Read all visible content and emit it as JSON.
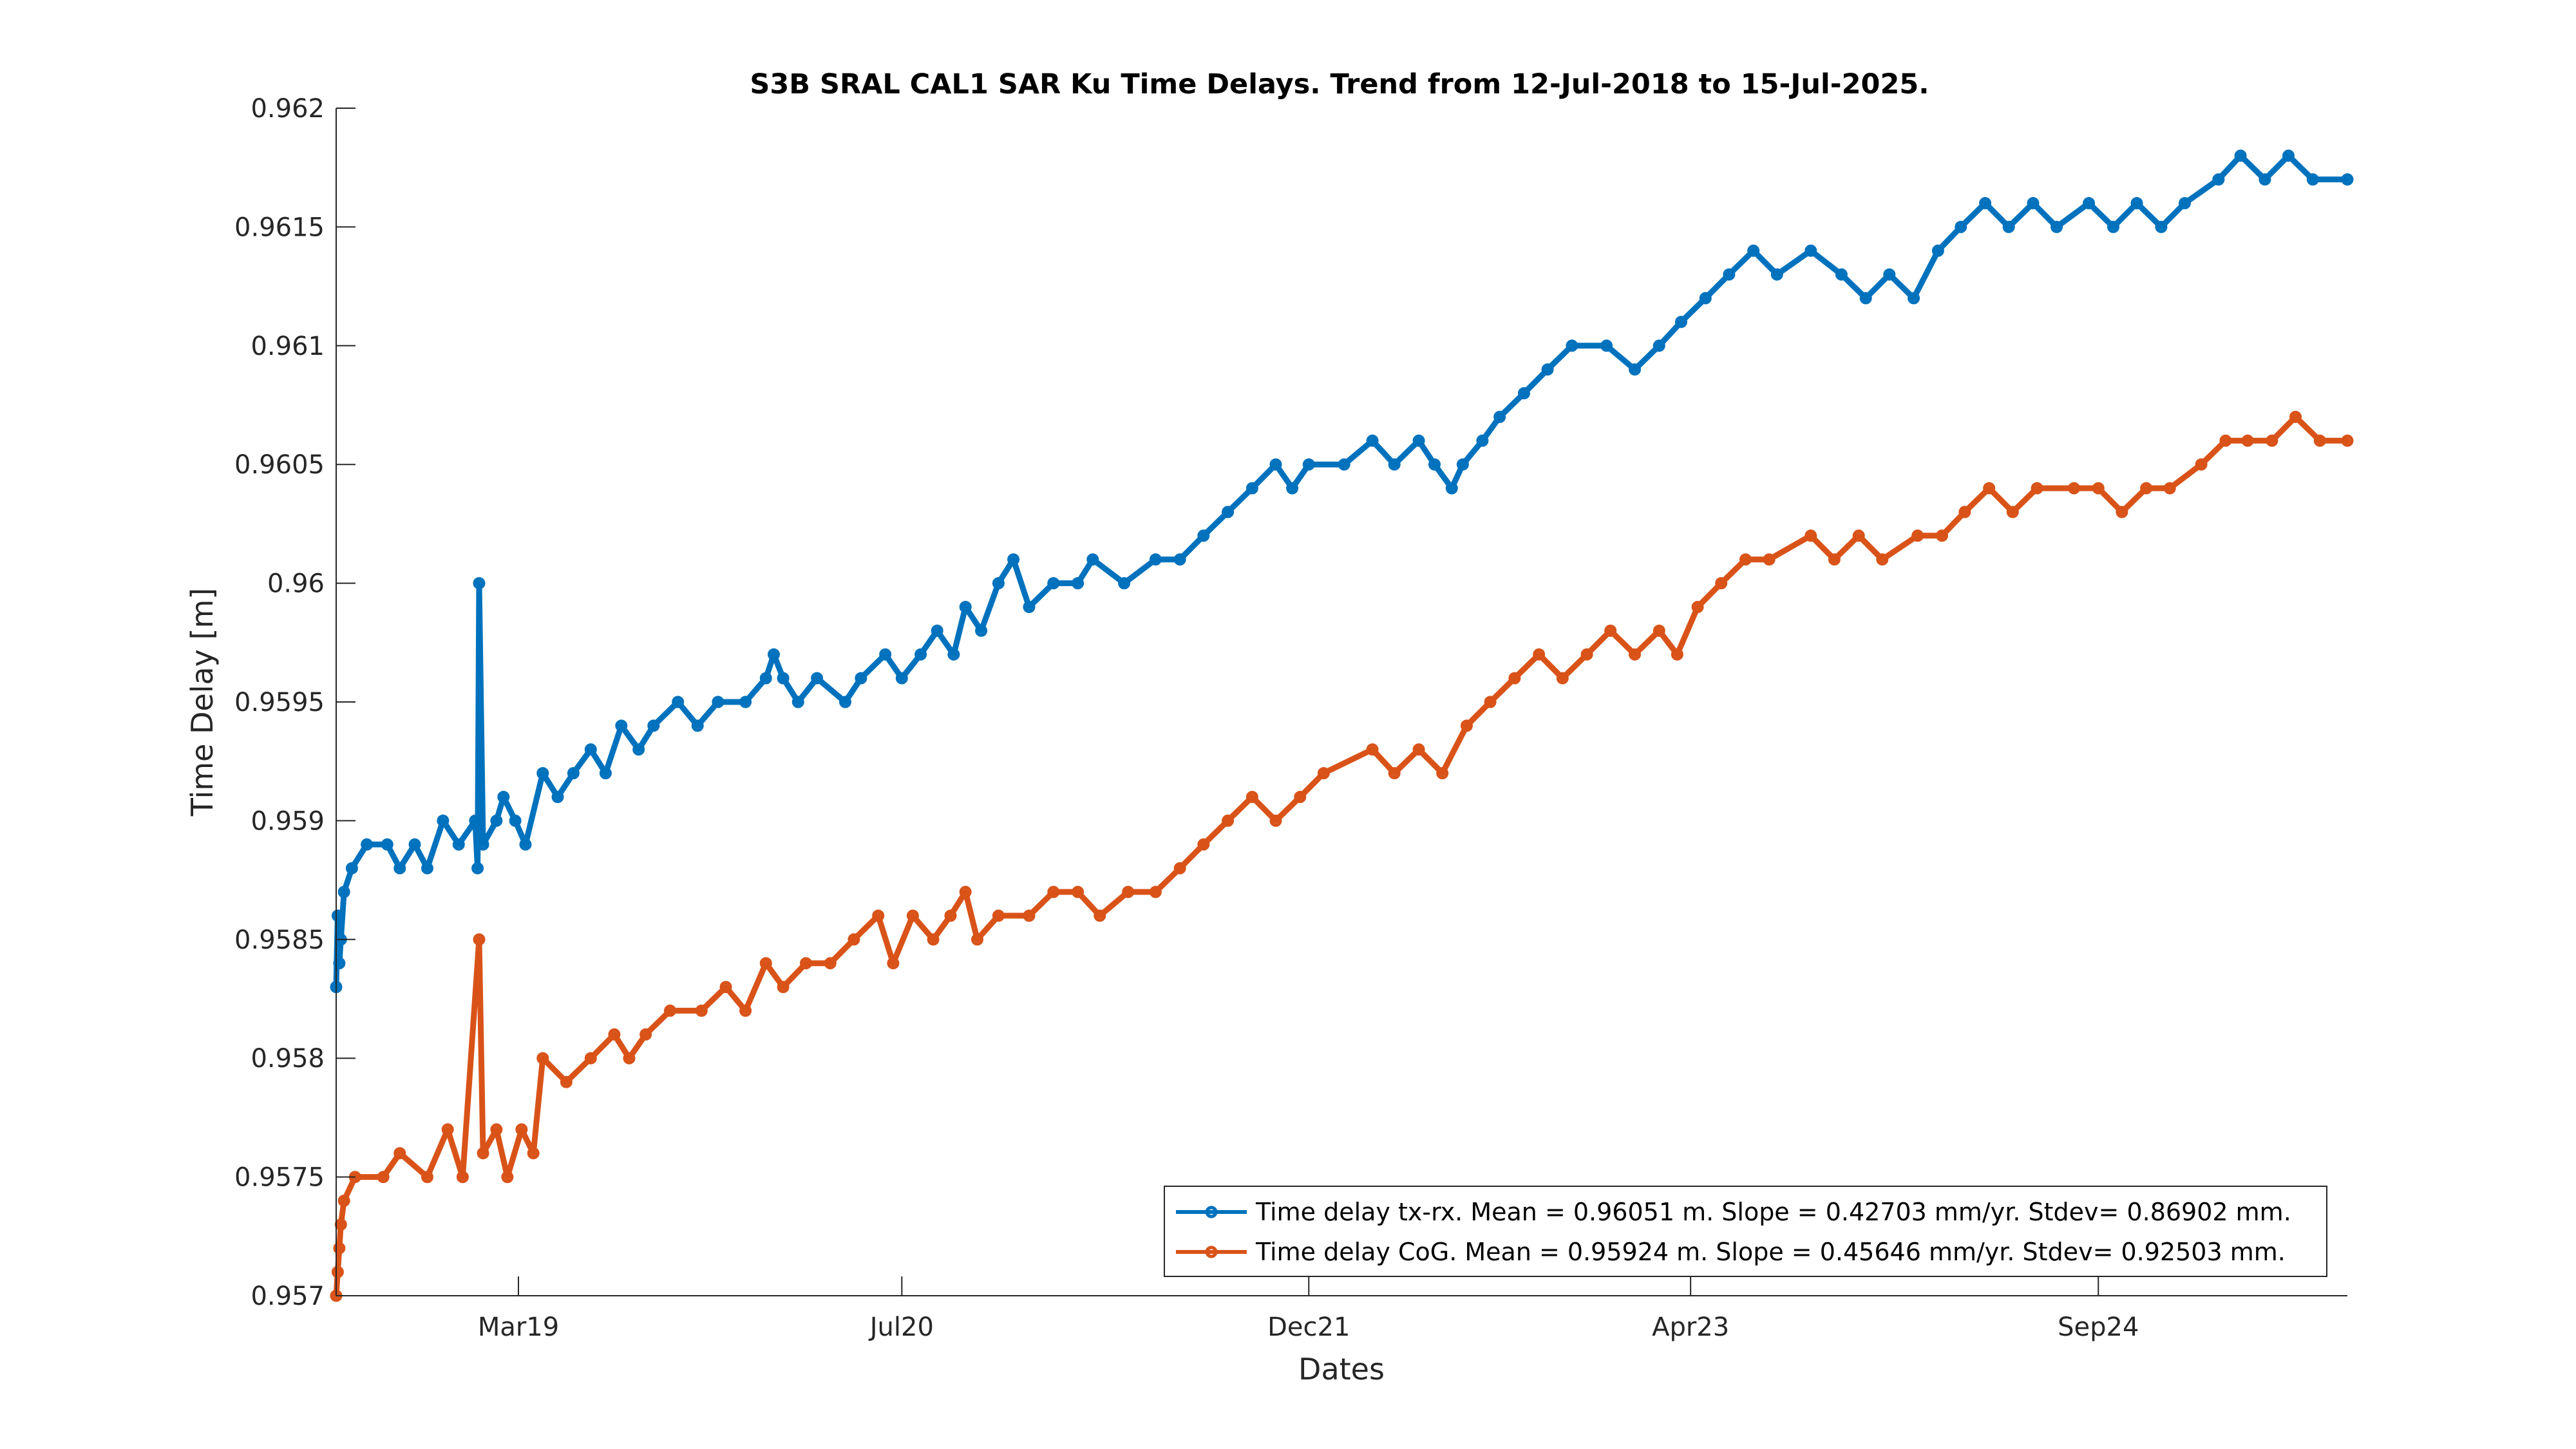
{
  "chart_data": {
    "type": "line",
    "title": "S3B SRAL CAL1 SAR Ku Time Delays. Trend from 12-Jul-2018 to 15-Jul-2025.",
    "xlabel": "Dates",
    "ylabel": "Time Delay [m]",
    "xlim": [
      "2018-07-12",
      "2025-07-15"
    ],
    "ylim": [
      0.957,
      0.962
    ],
    "x_ticks": [
      {
        "date": "2019-03-01",
        "label": "Mar19"
      },
      {
        "date": "2020-07-01",
        "label": "Jul20"
      },
      {
        "date": "2021-12-01",
        "label": "Dec21"
      },
      {
        "date": "2023-04-01",
        "label": "Apr23"
      },
      {
        "date": "2024-09-01",
        "label": "Sep24"
      }
    ],
    "y_ticks": [
      {
        "value": 0.957,
        "label": "0.957"
      },
      {
        "value": 0.9575,
        "label": "0.9575"
      },
      {
        "value": 0.958,
        "label": "0.958"
      },
      {
        "value": 0.9585,
        "label": "0.9585"
      },
      {
        "value": 0.959,
        "label": "0.959"
      },
      {
        "value": 0.9595,
        "label": "0.9595"
      },
      {
        "value": 0.96,
        "label": "0.96"
      },
      {
        "value": 0.9605,
        "label": "0.9605"
      },
      {
        "value": 0.961,
        "label": "0.961"
      },
      {
        "value": 0.9615,
        "label": "0.9615"
      },
      {
        "value": 0.962,
        "label": "0.962"
      }
    ],
    "grid": false,
    "legend_position": "bottom-right",
    "series": [
      {
        "name": "Time delay tx-rx. Mean = 0.96051 m. Slope = 0.42703 mm/yr. Stdev= 0.86902 mm.",
        "color": "#0072BD",
        "marker": "circle",
        "points": [
          [
            "2018-07-12",
            0.9583
          ],
          [
            "2018-07-14",
            0.9586
          ],
          [
            "2018-07-16",
            0.9584
          ],
          [
            "2018-07-18",
            0.9585
          ],
          [
            "2018-07-22",
            0.9587
          ],
          [
            "2018-08-01",
            0.9588
          ],
          [
            "2018-08-20",
            0.9589
          ],
          [
            "2018-09-15",
            0.9589
          ],
          [
            "2018-10-01",
            0.9588
          ],
          [
            "2018-10-20",
            0.9589
          ],
          [
            "2018-11-05",
            0.9588
          ],
          [
            "2018-11-25",
            0.959
          ],
          [
            "2018-12-15",
            0.9589
          ],
          [
            "2019-01-05",
            0.959
          ],
          [
            "2019-01-08",
            0.9588
          ],
          [
            "2019-01-10",
            0.96
          ],
          [
            "2019-01-15",
            0.9589
          ],
          [
            "2019-02-01",
            0.959
          ],
          [
            "2019-02-10",
            0.9591
          ],
          [
            "2019-02-25",
            0.959
          ],
          [
            "2019-03-10",
            0.9589
          ],
          [
            "2019-04-01",
            0.9592
          ],
          [
            "2019-04-20",
            0.9591
          ],
          [
            "2019-05-10",
            0.9592
          ],
          [
            "2019-06-01",
            0.9593
          ],
          [
            "2019-06-20",
            0.9592
          ],
          [
            "2019-07-10",
            0.9594
          ],
          [
            "2019-08-01",
            0.9593
          ],
          [
            "2019-08-20",
            0.9594
          ],
          [
            "2019-09-20",
            0.9595
          ],
          [
            "2019-10-15",
            0.9594
          ],
          [
            "2019-11-10",
            0.9595
          ],
          [
            "2019-12-15",
            0.9595
          ],
          [
            "2020-01-10",
            0.9596
          ],
          [
            "2020-01-20",
            0.9597
          ],
          [
            "2020-02-01",
            0.9596
          ],
          [
            "2020-02-20",
            0.9595
          ],
          [
            "2020-03-15",
            0.9596
          ],
          [
            "2020-04-20",
            0.9595
          ],
          [
            "2020-05-10",
            0.9596
          ],
          [
            "2020-06-10",
            0.9597
          ],
          [
            "2020-07-01",
            0.9596
          ],
          [
            "2020-07-25",
            0.9597
          ],
          [
            "2020-08-15",
            0.9598
          ],
          [
            "2020-09-05",
            0.9597
          ],
          [
            "2020-09-20",
            0.9599
          ],
          [
            "2020-10-10",
            0.9598
          ],
          [
            "2020-11-01",
            0.96
          ],
          [
            "2020-11-20",
            0.9601
          ],
          [
            "2020-12-10",
            0.9599
          ],
          [
            "2021-01-10",
            0.96
          ],
          [
            "2021-02-10",
            0.96
          ],
          [
            "2021-03-01",
            0.9601
          ],
          [
            "2021-04-10",
            0.96
          ],
          [
            "2021-05-20",
            0.9601
          ],
          [
            "2021-06-20",
            0.9601
          ],
          [
            "2021-07-20",
            0.9602
          ],
          [
            "2021-08-20",
            0.9603
          ],
          [
            "2021-09-20",
            0.9604
          ],
          [
            "2021-10-20",
            0.9605
          ],
          [
            "2021-11-10",
            0.9604
          ],
          [
            "2021-12-01",
            0.9605
          ],
          [
            "2022-01-15",
            0.9605
          ],
          [
            "2022-02-20",
            0.9606
          ],
          [
            "2022-03-20",
            0.9605
          ],
          [
            "2022-04-20",
            0.9606
          ],
          [
            "2022-05-10",
            0.9605
          ],
          [
            "2022-06-01",
            0.9604
          ],
          [
            "2022-06-15",
            0.9605
          ],
          [
            "2022-07-10",
            0.9606
          ],
          [
            "2022-08-01",
            0.9607
          ],
          [
            "2022-09-01",
            0.9608
          ],
          [
            "2022-10-01",
            0.9609
          ],
          [
            "2022-11-01",
            0.961
          ],
          [
            "2022-12-15",
            0.961
          ],
          [
            "2023-01-20",
            0.9609
          ],
          [
            "2023-02-20",
            0.961
          ],
          [
            "2023-03-20",
            0.9611
          ],
          [
            "2023-04-20",
            0.9612
          ],
          [
            "2023-05-20",
            0.9613
          ],
          [
            "2023-06-20",
            0.9614
          ],
          [
            "2023-07-20",
            0.9613
          ],
          [
            "2023-09-01",
            0.9614
          ],
          [
            "2023-10-10",
            0.9613
          ],
          [
            "2023-11-10",
            0.9612
          ],
          [
            "2023-12-10",
            0.9613
          ],
          [
            "2024-01-10",
            0.9612
          ],
          [
            "2024-02-10",
            0.9614
          ],
          [
            "2024-03-10",
            0.9615
          ],
          [
            "2024-04-10",
            0.9616
          ],
          [
            "2024-05-10",
            0.9615
          ],
          [
            "2024-06-10",
            0.9616
          ],
          [
            "2024-07-10",
            0.9615
          ],
          [
            "2024-08-20",
            0.9616
          ],
          [
            "2024-09-20",
            0.9615
          ],
          [
            "2024-10-20",
            0.9616
          ],
          [
            "2024-11-20",
            0.9615
          ],
          [
            "2024-12-20",
            0.9616
          ],
          [
            "2025-02-01",
            0.9617
          ],
          [
            "2025-03-01",
            0.9618
          ],
          [
            "2025-04-01",
            0.9617
          ],
          [
            "2025-05-01",
            0.9618
          ],
          [
            "2025-06-01",
            0.9617
          ],
          [
            "2025-07-15",
            0.9617
          ]
        ]
      },
      {
        "name": "Time delay CoG. Mean = 0.95924 m. Slope = 0.45646 mm/yr. Stdev= 0.92503 mm.",
        "color": "#D95319",
        "marker": "circle",
        "points": [
          [
            "2018-07-12",
            0.957
          ],
          [
            "2018-07-14",
            0.9571
          ],
          [
            "2018-07-16",
            0.9572
          ],
          [
            "2018-07-18",
            0.9573
          ],
          [
            "2018-07-22",
            0.9574
          ],
          [
            "2018-08-05",
            0.9575
          ],
          [
            "2018-09-10",
            0.9575
          ],
          [
            "2018-10-01",
            0.9576
          ],
          [
            "2018-11-05",
            0.9575
          ],
          [
            "2018-12-01",
            0.9577
          ],
          [
            "2018-12-20",
            0.9575
          ],
          [
            "2019-01-10",
            0.9585
          ],
          [
            "2019-01-15",
            0.9576
          ],
          [
            "2019-02-01",
            0.9577
          ],
          [
            "2019-02-15",
            0.9575
          ],
          [
            "2019-03-05",
            0.9577
          ],
          [
            "2019-03-20",
            0.9576
          ],
          [
            "2019-04-01",
            0.958
          ],
          [
            "2019-05-01",
            0.9579
          ],
          [
            "2019-06-01",
            0.958
          ],
          [
            "2019-07-01",
            0.9581
          ],
          [
            "2019-07-20",
            0.958
          ],
          [
            "2019-08-10",
            0.9581
          ],
          [
            "2019-09-10",
            0.9582
          ],
          [
            "2019-10-20",
            0.9582
          ],
          [
            "2019-11-20",
            0.9583
          ],
          [
            "2019-12-15",
            0.9582
          ],
          [
            "2020-01-10",
            0.9584
          ],
          [
            "2020-02-01",
            0.9583
          ],
          [
            "2020-03-01",
            0.9584
          ],
          [
            "2020-04-01",
            0.9584
          ],
          [
            "2020-05-01",
            0.9585
          ],
          [
            "2020-06-01",
            0.9586
          ],
          [
            "2020-06-20",
            0.9584
          ],
          [
            "2020-07-15",
            0.9586
          ],
          [
            "2020-08-10",
            0.9585
          ],
          [
            "2020-09-01",
            0.9586
          ],
          [
            "2020-09-20",
            0.9587
          ],
          [
            "2020-10-05",
            0.9585
          ],
          [
            "2020-11-01",
            0.9586
          ],
          [
            "2020-12-10",
            0.9586
          ],
          [
            "2021-01-10",
            0.9587
          ],
          [
            "2021-02-10",
            0.9587
          ],
          [
            "2021-03-10",
            0.9586
          ],
          [
            "2021-04-15",
            0.9587
          ],
          [
            "2021-05-20",
            0.9587
          ],
          [
            "2021-06-20",
            0.9588
          ],
          [
            "2021-07-20",
            0.9589
          ],
          [
            "2021-08-20",
            0.959
          ],
          [
            "2021-09-20",
            0.9591
          ],
          [
            "2021-10-20",
            0.959
          ],
          [
            "2021-11-20",
            0.9591
          ],
          [
            "2021-12-20",
            0.9592
          ],
          [
            "2022-02-20",
            0.9593
          ],
          [
            "2022-03-20",
            0.9592
          ],
          [
            "2022-04-20",
            0.9593
          ],
          [
            "2022-05-20",
            0.9592
          ],
          [
            "2022-06-20",
            0.9594
          ],
          [
            "2022-07-20",
            0.9595
          ],
          [
            "2022-08-20",
            0.9596
          ],
          [
            "2022-09-20",
            0.9597
          ],
          [
            "2022-10-20",
            0.9596
          ],
          [
            "2022-11-20",
            0.9597
          ],
          [
            "2022-12-20",
            0.9598
          ],
          [
            "2023-01-20",
            0.9597
          ],
          [
            "2023-02-20",
            0.9598
          ],
          [
            "2023-03-15",
            0.9597
          ],
          [
            "2023-04-10",
            0.9599
          ],
          [
            "2023-05-10",
            0.96
          ],
          [
            "2023-06-10",
            0.9601
          ],
          [
            "2023-07-10",
            0.9601
          ],
          [
            "2023-09-01",
            0.9602
          ],
          [
            "2023-10-01",
            0.9601
          ],
          [
            "2023-11-01",
            0.9602
          ],
          [
            "2023-12-01",
            0.9601
          ],
          [
            "2024-01-15",
            0.9602
          ],
          [
            "2024-02-15",
            0.9602
          ],
          [
            "2024-03-15",
            0.9603
          ],
          [
            "2024-04-15",
            0.9604
          ],
          [
            "2024-05-15",
            0.9603
          ],
          [
            "2024-06-15",
            0.9604
          ],
          [
            "2024-08-01",
            0.9604
          ],
          [
            "2024-09-01",
            0.9604
          ],
          [
            "2024-10-01",
            0.9603
          ],
          [
            "2024-11-01",
            0.9604
          ],
          [
            "2024-12-01",
            0.9604
          ],
          [
            "2025-01-10",
            0.9605
          ],
          [
            "2025-02-10",
            0.9606
          ],
          [
            "2025-03-10",
            0.9606
          ],
          [
            "2025-04-10",
            0.9606
          ],
          [
            "2025-05-10",
            0.9607
          ],
          [
            "2025-06-10",
            0.9606
          ],
          [
            "2025-07-15",
            0.9606
          ]
        ]
      }
    ]
  }
}
